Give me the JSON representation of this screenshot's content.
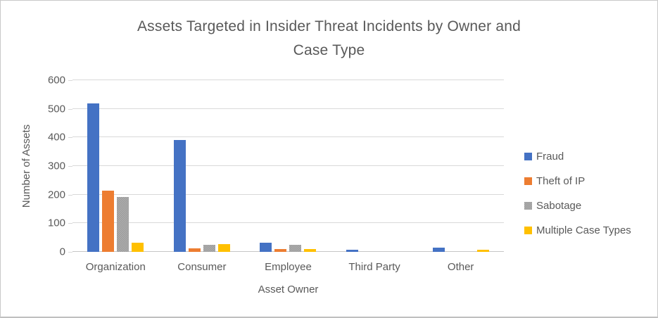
{
  "chart_data": {
    "type": "bar",
    "title": "Assets Targeted in Insider Threat Incidents by Owner and Case Type",
    "title_lines": [
      "Assets Targeted in Insider Threat Incidents by Owner and",
      "Case Type"
    ],
    "xlabel": "Asset Owner",
    "ylabel": "Number of Assets",
    "ylim": [
      0,
      600
    ],
    "yticks": [
      0,
      100,
      200,
      300,
      400,
      500,
      600
    ],
    "grid": true,
    "legend_position": "right",
    "categories": [
      "Organization",
      "Consumer",
      "Employee",
      "Third Party",
      "Other"
    ],
    "series": [
      {
        "name": "Fraud",
        "color": "#4472C4",
        "textured": false,
        "values": [
          520,
          390,
          32,
          8,
          16
        ]
      },
      {
        "name": "Theft of IP",
        "color": "#ED7D31",
        "textured": false,
        "values": [
          215,
          13,
          10,
          0,
          0
        ]
      },
      {
        "name": "Sabotage",
        "color": "#A5A5A5",
        "textured": true,
        "values": [
          193,
          25,
          25,
          0,
          0
        ]
      },
      {
        "name": "Multiple Case Types",
        "color": "#FFC000",
        "textured": false,
        "values": [
          33,
          27,
          9,
          0,
          7
        ]
      }
    ]
  },
  "style": {
    "title_color": "#595959",
    "axis_text_color": "#595959",
    "gridline_color": "#D9D9D9",
    "axis_line_color": "#C6C6C6",
    "background": "#FFFFFF",
    "border_color": "#C9C9C9"
  }
}
